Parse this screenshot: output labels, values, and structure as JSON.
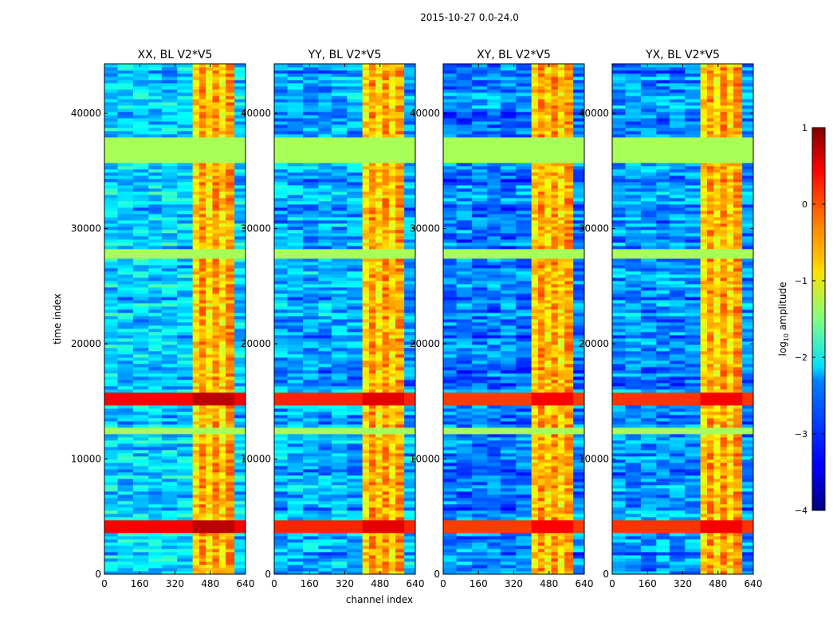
{
  "chart_data": {
    "type": "heatmap",
    "suptitle": "2015-10-27 0.0-24.0",
    "xlabel": "channel index",
    "ylabel": "time index",
    "xlim": [
      0,
      640
    ],
    "ylim": [
      0,
      44300
    ],
    "xticks": [
      0,
      160,
      320,
      480,
      640
    ],
    "xtick_labels": [
      "0",
      "160",
      "320",
      "480",
      "640"
    ],
    "yticks": [
      0,
      10000,
      20000,
      30000,
      40000
    ],
    "ytick_labels": [
      "0",
      "10000",
      "20000",
      "30000",
      "40000"
    ],
    "colormap": "jet",
    "colorbar": {
      "label_main": "log",
      "label_sub": "10",
      "label_rest": " amplitude",
      "vmin": -4,
      "vmax": 1,
      "ticks": [
        1,
        0,
        -1,
        -2,
        -3,
        -4
      ],
      "tick_labels": [
        "1",
        "0",
        "−1",
        "−2",
        "−3",
        "−4"
      ]
    },
    "panels": [
      {
        "title": "XX, BL V2*V5",
        "band_log_amp": [
          -2.6,
          -0.7,
          -0.4,
          0.6
        ],
        "flare_strength": 1.0
      },
      {
        "title": "YY, BL V2*V5",
        "band_log_amp": [
          -2.8,
          -0.7,
          -0.4,
          0.5
        ],
        "flare_strength": 0.8
      },
      {
        "title": "XY, BL V2*V5",
        "band_log_amp": [
          -3.0,
          -0.7,
          -0.5,
          0.4
        ],
        "flare_strength": 0.7
      },
      {
        "title": "YX, BL V2*V5",
        "band_log_amp": [
          -2.9,
          -0.7,
          -0.5,
          0.4
        ],
        "flare_strength": 0.8
      }
    ],
    "flagged_time_ranges": [
      [
        27400,
        28300
      ],
      [
        35800,
        37800
      ],
      [
        12200,
        12800
      ]
    ],
    "rfi_channel_range": [
      400,
      590
    ],
    "bright_time_ranges": [
      [
        3500,
        4600
      ],
      [
        14800,
        15800
      ]
    ]
  }
}
